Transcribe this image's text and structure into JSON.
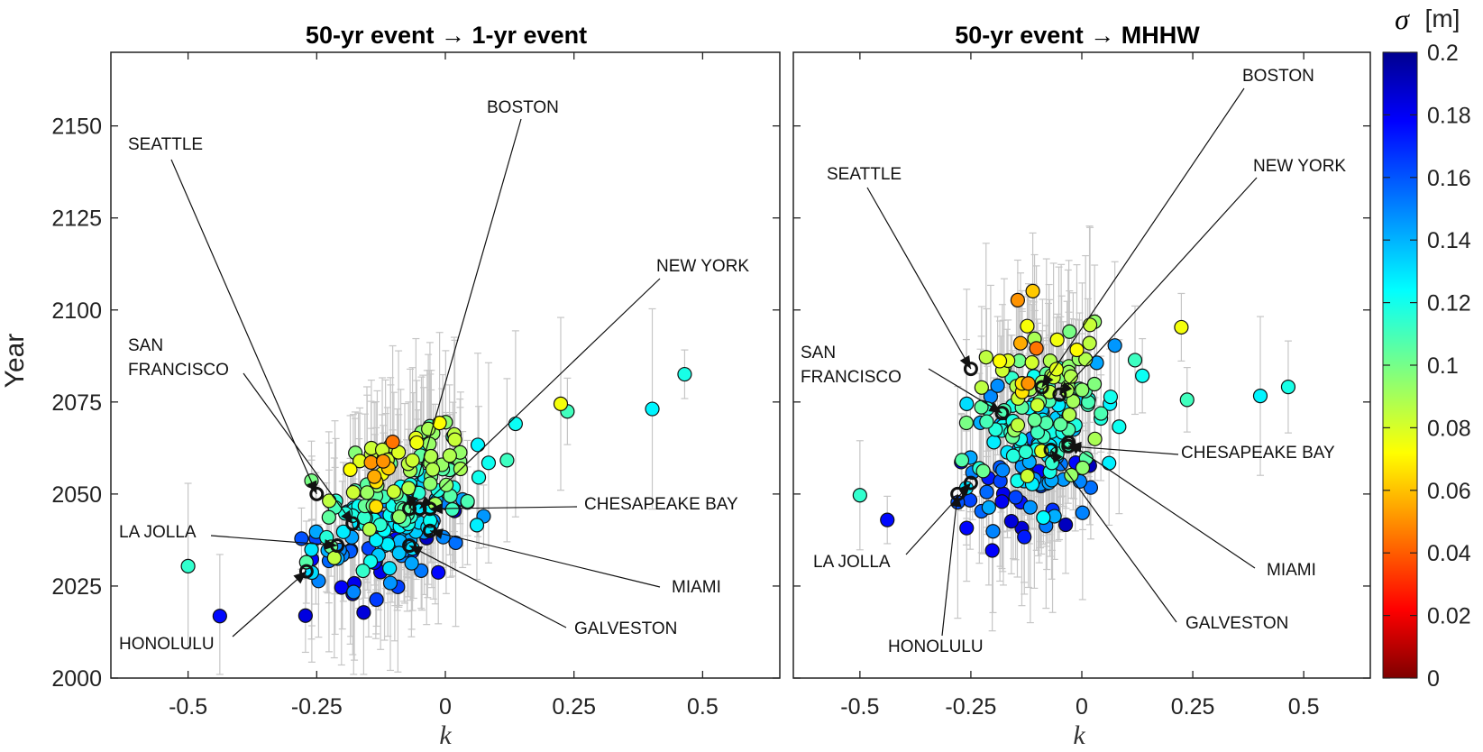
{
  "chart_data": [
    {
      "type": "scatter",
      "title": "50-yr event → 1-yr event",
      "xlabel": "k",
      "ylabel": "Year",
      "xlim": [
        -0.65,
        0.65
      ],
      "ylim": [
        2000,
        2170
      ],
      "xticks": [
        "-0.5",
        "-0.25",
        "0",
        "0.25",
        "0.5"
      ],
      "yticks": [
        "2000",
        "2025",
        "2050",
        "2075",
        "2100",
        "2125",
        "2150"
      ],
      "labels": [
        {
          "text": "BOSTON",
          "target_k": -0.07,
          "target_year": 2046
        },
        {
          "text": "SEATTLE",
          "target_k": -0.25,
          "target_year": 2050
        },
        {
          "text": "NEW YORK",
          "target_k": -0.05,
          "target_year": 2046
        },
        {
          "text": "SAN",
          "target_k": -0.18,
          "target_year": 2042
        },
        {
          "text": "FRANCISCO",
          "target_k": -0.18,
          "target_year": 2042
        },
        {
          "text": "CHESAPEAKE BAY",
          "target_k": -0.03,
          "target_year": 2046
        },
        {
          "text": "LA JOLLA",
          "target_k": -0.21,
          "target_year": 2036
        },
        {
          "text": "MIAMI",
          "target_k": -0.03,
          "target_year": 2040
        },
        {
          "text": "GALVESTON",
          "target_k": -0.07,
          "target_year": 2036
        },
        {
          "text": "HONOLULU",
          "target_k": -0.27,
          "target_year": 2029
        }
      ]
    },
    {
      "type": "scatter",
      "title": "50-yr event → MHHW",
      "xlabel": "k",
      "xlim": [
        -0.65,
        0.65
      ],
      "ylim": [
        2000,
        2170
      ],
      "xticks": [
        "-0.5",
        "-0.25",
        "0",
        "0.25",
        "0.5"
      ],
      "labels": [
        {
          "text": "BOSTON",
          "target_k": -0.09,
          "target_year": 2079
        },
        {
          "text": "SEATTLE",
          "target_k": -0.25,
          "target_year": 2084
        },
        {
          "text": "NEW YORK",
          "target_k": -0.05,
          "target_year": 2077
        },
        {
          "text": "SAN",
          "target_k": -0.18,
          "target_year": 2072
        },
        {
          "text": "FRANCISCO",
          "target_k": -0.18,
          "target_year": 2072
        },
        {
          "text": "CHESAPEAKE BAY",
          "target_k": -0.03,
          "target_year": 2063
        },
        {
          "text": "LA JOLLA",
          "target_k": -0.25,
          "target_year": 2053
        },
        {
          "text": "MIAMI",
          "target_k": -0.03,
          "target_year": 2064
        },
        {
          "text": "GALVESTON",
          "target_k": -0.07,
          "target_year": 2062
        },
        {
          "text": "HONOLULU",
          "target_k": -0.28,
          "target_year": 2050
        }
      ]
    }
  ],
  "colorbar": {
    "title_symbol": "σ",
    "title_unit": "[m]",
    "range": [
      0,
      0.2
    ],
    "ticks": [
      "0",
      "0.02",
      "0.04",
      "0.06",
      "0.08",
      "0.1",
      "0.12",
      "0.14",
      "0.16",
      "0.18",
      "0.2"
    ]
  },
  "point_settings": {
    "count_per_panel": 220,
    "k_center": -0.1,
    "year_center_panel1": 2045,
    "year_center_panel2": 2068
  }
}
